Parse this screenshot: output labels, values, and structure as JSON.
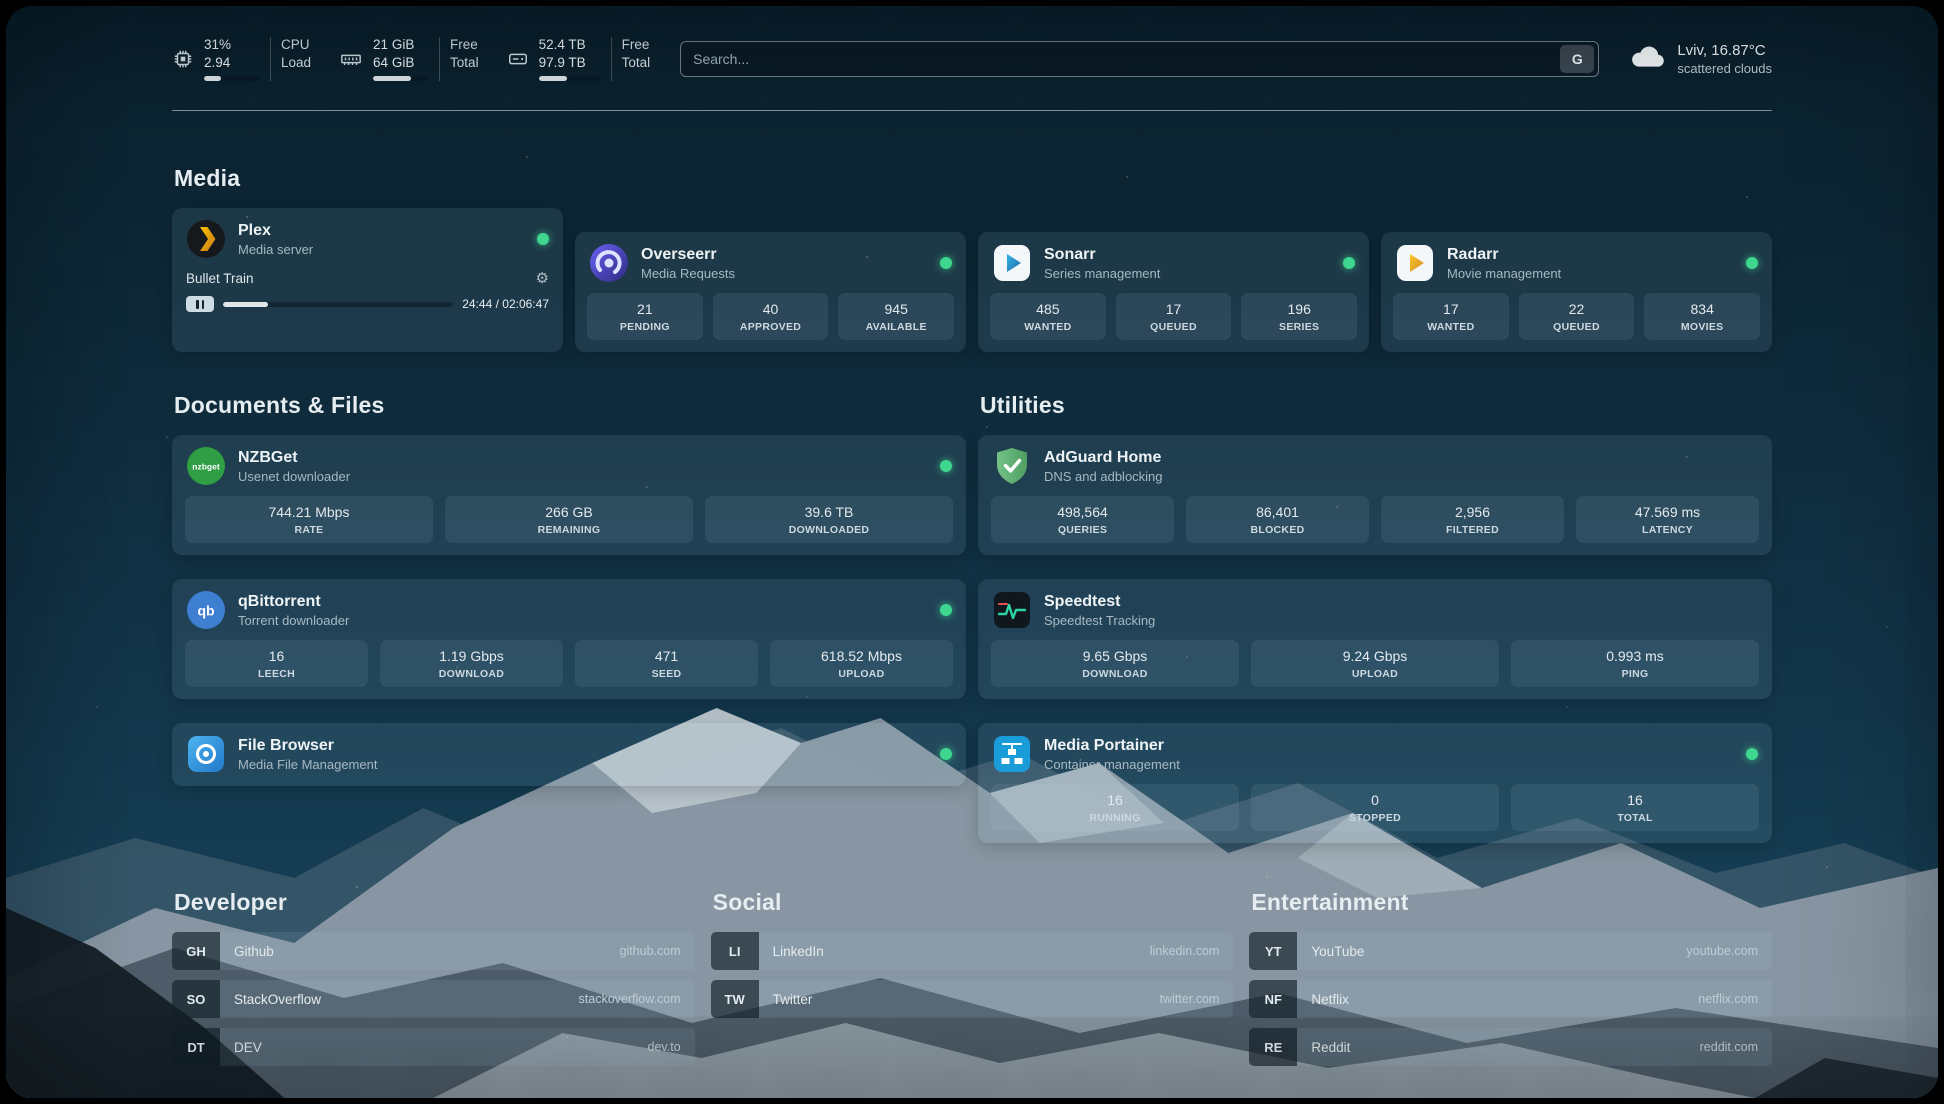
{
  "colors": {
    "status_green": "#3fd68f",
    "plex_amber": "#e8a02a",
    "sonarr_blue": "#35a3dc",
    "radarr_gold": "#f1c12e",
    "adguard_green": "#67b279",
    "portainer_blue": "#1a9cd8",
    "speedtest_green": "#2dd4a7"
  },
  "icons": {
    "gear": "⚙"
  },
  "topbar": {
    "cpu": {
      "value": "31%",
      "sub": "2.94",
      "label_top": "CPU",
      "label_bottom": "Load",
      "progress": 31
    },
    "ram": {
      "value": "21 GiB",
      "sub": "64 GiB",
      "label_top": "Free",
      "label_bottom": "Total",
      "progress": 67
    },
    "disk": {
      "value": "52.4 TB",
      "sub": "97.9 TB",
      "label_top": "Free",
      "label_bottom": "Total",
      "progress": 46
    },
    "search": {
      "placeholder": "Search...",
      "provider": "G"
    },
    "weather": {
      "location": "Lviv, 16.87°C",
      "condition": "scattered clouds"
    }
  },
  "media": {
    "title": "Media",
    "plex": {
      "name": "Plex",
      "desc": "Media server",
      "player": {
        "title": "Bullet Train",
        "time": "24:44 / 02:06:47",
        "progress": 19.5
      }
    },
    "overseerr": {
      "name": "Overseerr",
      "desc": "Media Requests",
      "stats": [
        {
          "value": "21",
          "label": "PENDING"
        },
        {
          "value": "40",
          "label": "APPROVED"
        },
        {
          "value": "945",
          "label": "AVAILABLE"
        }
      ]
    },
    "sonarr": {
      "name": "Sonarr",
      "desc": "Series management",
      "stats": [
        {
          "value": "485",
          "label": "WANTED"
        },
        {
          "value": "17",
          "label": "QUEUED"
        },
        {
          "value": "196",
          "label": "SERIES"
        }
      ]
    },
    "radarr": {
      "name": "Radarr",
      "desc": "Movie management",
      "stats": [
        {
          "value": "17",
          "label": "WANTED"
        },
        {
          "value": "22",
          "label": "QUEUED"
        },
        {
          "value": "834",
          "label": "MOVIES"
        }
      ]
    }
  },
  "documents": {
    "title": "Documents & Files",
    "nzbget": {
      "name": "NZBGet",
      "desc": "Usenet downloader",
      "icon_text": "nzbget",
      "stats": [
        {
          "value": "744.21 Mbps",
          "label": "RATE"
        },
        {
          "value": "266 GB",
          "label": "REMAINING"
        },
        {
          "value": "39.6 TB",
          "label": "DOWNLOADED"
        }
      ]
    },
    "qbittorrent": {
      "name": "qBittorrent",
      "desc": "Torrent downloader",
      "icon_text": "qb",
      "stats": [
        {
          "value": "16",
          "label": "LEECH"
        },
        {
          "value": "1.19 Gbps",
          "label": "DOWNLOAD"
        },
        {
          "value": "471",
          "label": "SEED"
        },
        {
          "value": "618.52 Mbps",
          "label": "UPLOAD"
        }
      ]
    },
    "filebrowser": {
      "name": "File Browser",
      "desc": "Media File Management"
    }
  },
  "utilities": {
    "title": "Utilities",
    "adguard": {
      "name": "AdGuard Home",
      "desc": "DNS and adblocking",
      "stats": [
        {
          "value": "498,564",
          "label": "QUERIES"
        },
        {
          "value": "86,401",
          "label": "BLOCKED"
        },
        {
          "value": "2,956",
          "label": "FILTERED"
        },
        {
          "value": "47.569 ms",
          "label": "LATENCY"
        }
      ]
    },
    "speedtest": {
      "name": "Speedtest",
      "desc": "Speedtest Tracking",
      "stats": [
        {
          "value": "9.65 Gbps",
          "label": "DOWNLOAD"
        },
        {
          "value": "9.24 Gbps",
          "label": "UPLOAD"
        },
        {
          "value": "0.993 ms",
          "label": "PING"
        }
      ]
    },
    "portainer": {
      "name": "Media Portainer",
      "desc": "Container management",
      "stats": [
        {
          "value": "16",
          "label": "RUNNING"
        },
        {
          "value": "0",
          "label": "STOPPED"
        },
        {
          "value": "16",
          "label": "TOTAL"
        }
      ]
    }
  },
  "bookmarks": {
    "developer": {
      "title": "Developer",
      "items": [
        {
          "abbr": "GH",
          "name": "Github",
          "url": "github.com"
        },
        {
          "abbr": "SO",
          "name": "StackOverflow",
          "url": "stackoverflow.com"
        },
        {
          "abbr": "DT",
          "name": "DEV",
          "url": "dev.to"
        }
      ]
    },
    "social": {
      "title": "Social",
      "items": [
        {
          "abbr": "LI",
          "name": "LinkedIn",
          "url": "linkedin.com"
        },
        {
          "abbr": "TW",
          "name": "Twitter",
          "url": "twitter.com"
        }
      ]
    },
    "entertainment": {
      "title": "Entertainment",
      "items": [
        {
          "abbr": "YT",
          "name": "YouTube",
          "url": "youtube.com"
        },
        {
          "abbr": "NF",
          "name": "Netflix",
          "url": "netflix.com"
        },
        {
          "abbr": "RE",
          "name": "Reddit",
          "url": "reddit.com"
        }
      ]
    }
  }
}
